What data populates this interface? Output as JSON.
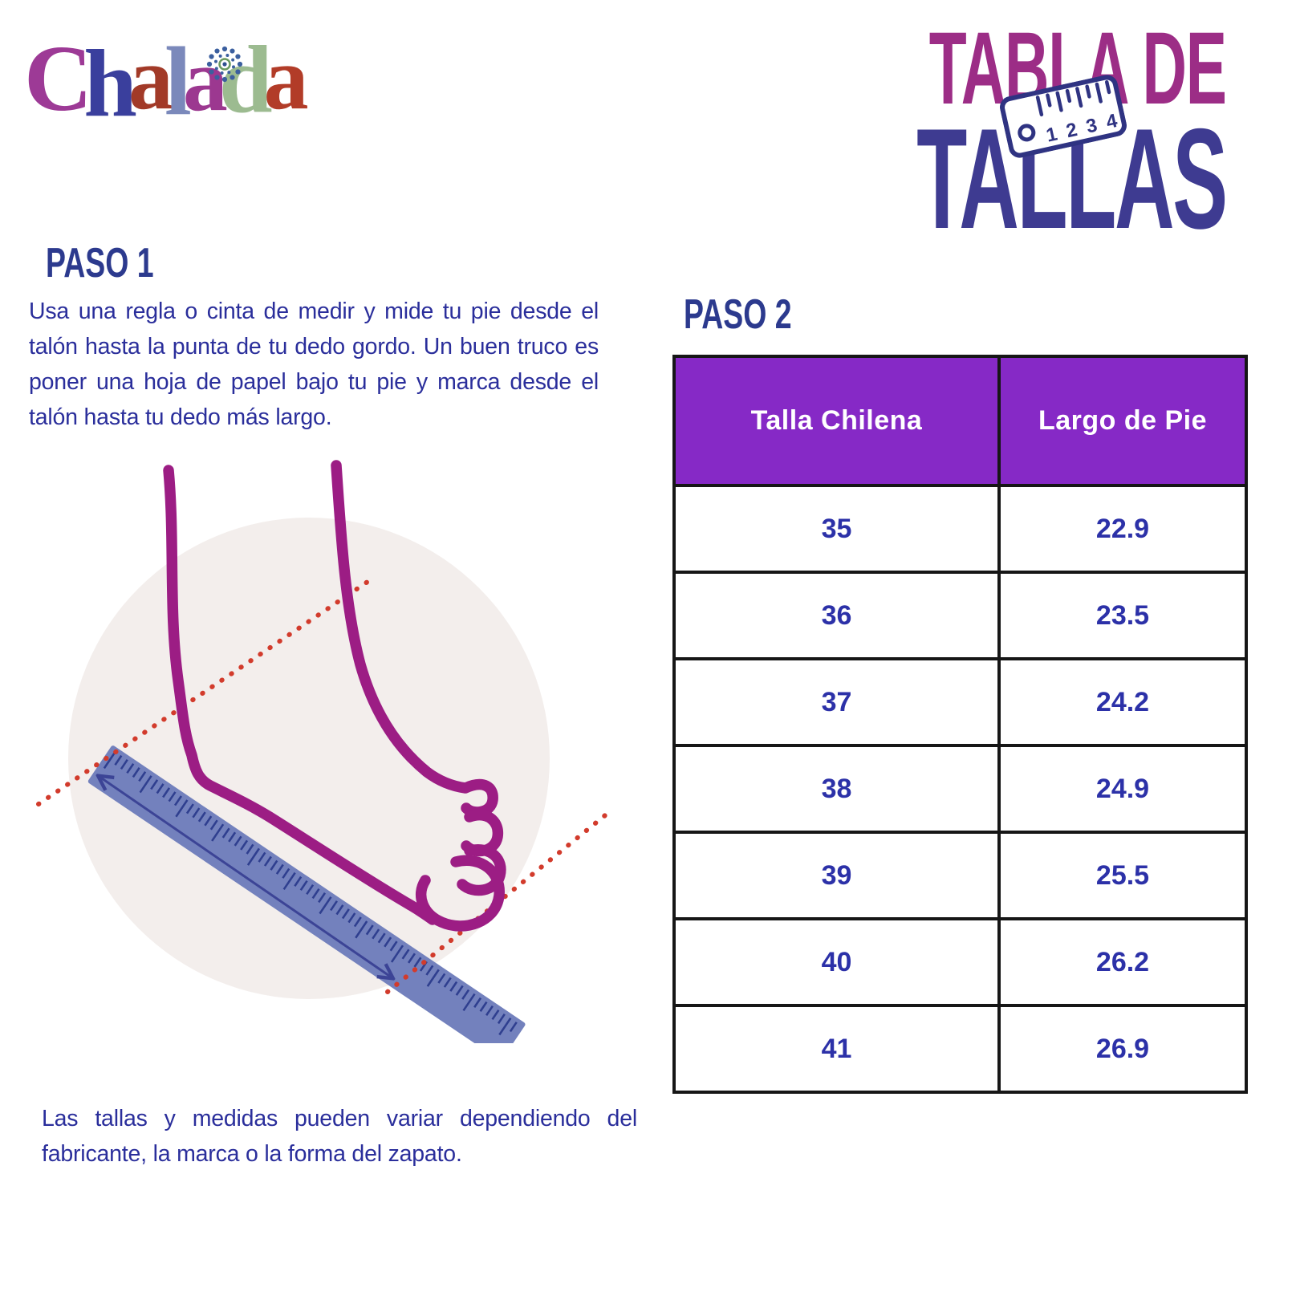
{
  "logo": {
    "name": "Chalada",
    "letters": [
      {
        "char": "C",
        "color": "#9d3a96"
      },
      {
        "char": "h",
        "color": "#3a3f9d"
      },
      {
        "char": "a",
        "color": "#a23a28"
      },
      {
        "char": "l",
        "color": "#7b89bb"
      },
      {
        "char": "a",
        "color": "#9c3890"
      },
      {
        "char": "d",
        "color": "#9cbb90"
      },
      {
        "char": "a",
        "color": "#b23c28"
      }
    ]
  },
  "title": {
    "line1": "TABLA DE",
    "line2": "TALLAS",
    "ruler_numbers": [
      "1",
      "2",
      "3",
      "4"
    ]
  },
  "paso1": {
    "heading": "PASO 1",
    "lines": [
      "Usa una regla o cinta de medir y mide tu pie desde el",
      "talón hasta la punta de tu dedo gordo. Un buen truco es",
      "poner una hoja de papel bajo tu pie y marca desde el",
      "talón hasta tu dedo más largo."
    ]
  },
  "paso2": {
    "heading": "PASO 2"
  },
  "table": {
    "headers": [
      "Talla Chilena",
      "Largo de Pie"
    ],
    "rows": [
      {
        "talla": "35",
        "largo": "22.9"
      },
      {
        "talla": "36",
        "largo": "23.5"
      },
      {
        "talla": "37",
        "largo": "24.2"
      },
      {
        "talla": "38",
        "largo": "24.9"
      },
      {
        "talla": "39",
        "largo": "25.5"
      },
      {
        "talla": "40",
        "largo": "26.2"
      },
      {
        "talla": "41",
        "largo": "26.9"
      }
    ]
  },
  "disclaimer": {
    "lines": [
      "Las tallas y medidas pueden variar dependiendo del",
      "fabricante, la marca o la forma del zapato."
    ]
  },
  "colors": {
    "paragraph": "#2a2e9b",
    "heading": "#2c3a8e",
    "title_magenta": "#9c2d86",
    "title_indigo": "#3e3b91",
    "icon_stroke": "#2f3382",
    "table_num": "#2c31a8",
    "header_bg": "#8629c6",
    "header_text": "#ffffff",
    "border": "#161616",
    "foot": "#9c1d84",
    "ruler": "#7381bd",
    "ruler_tick": "#2f3f8f",
    "circle": "#f3eeec",
    "red_dots": "#d23b2c",
    "arrow": "#3c4496"
  }
}
